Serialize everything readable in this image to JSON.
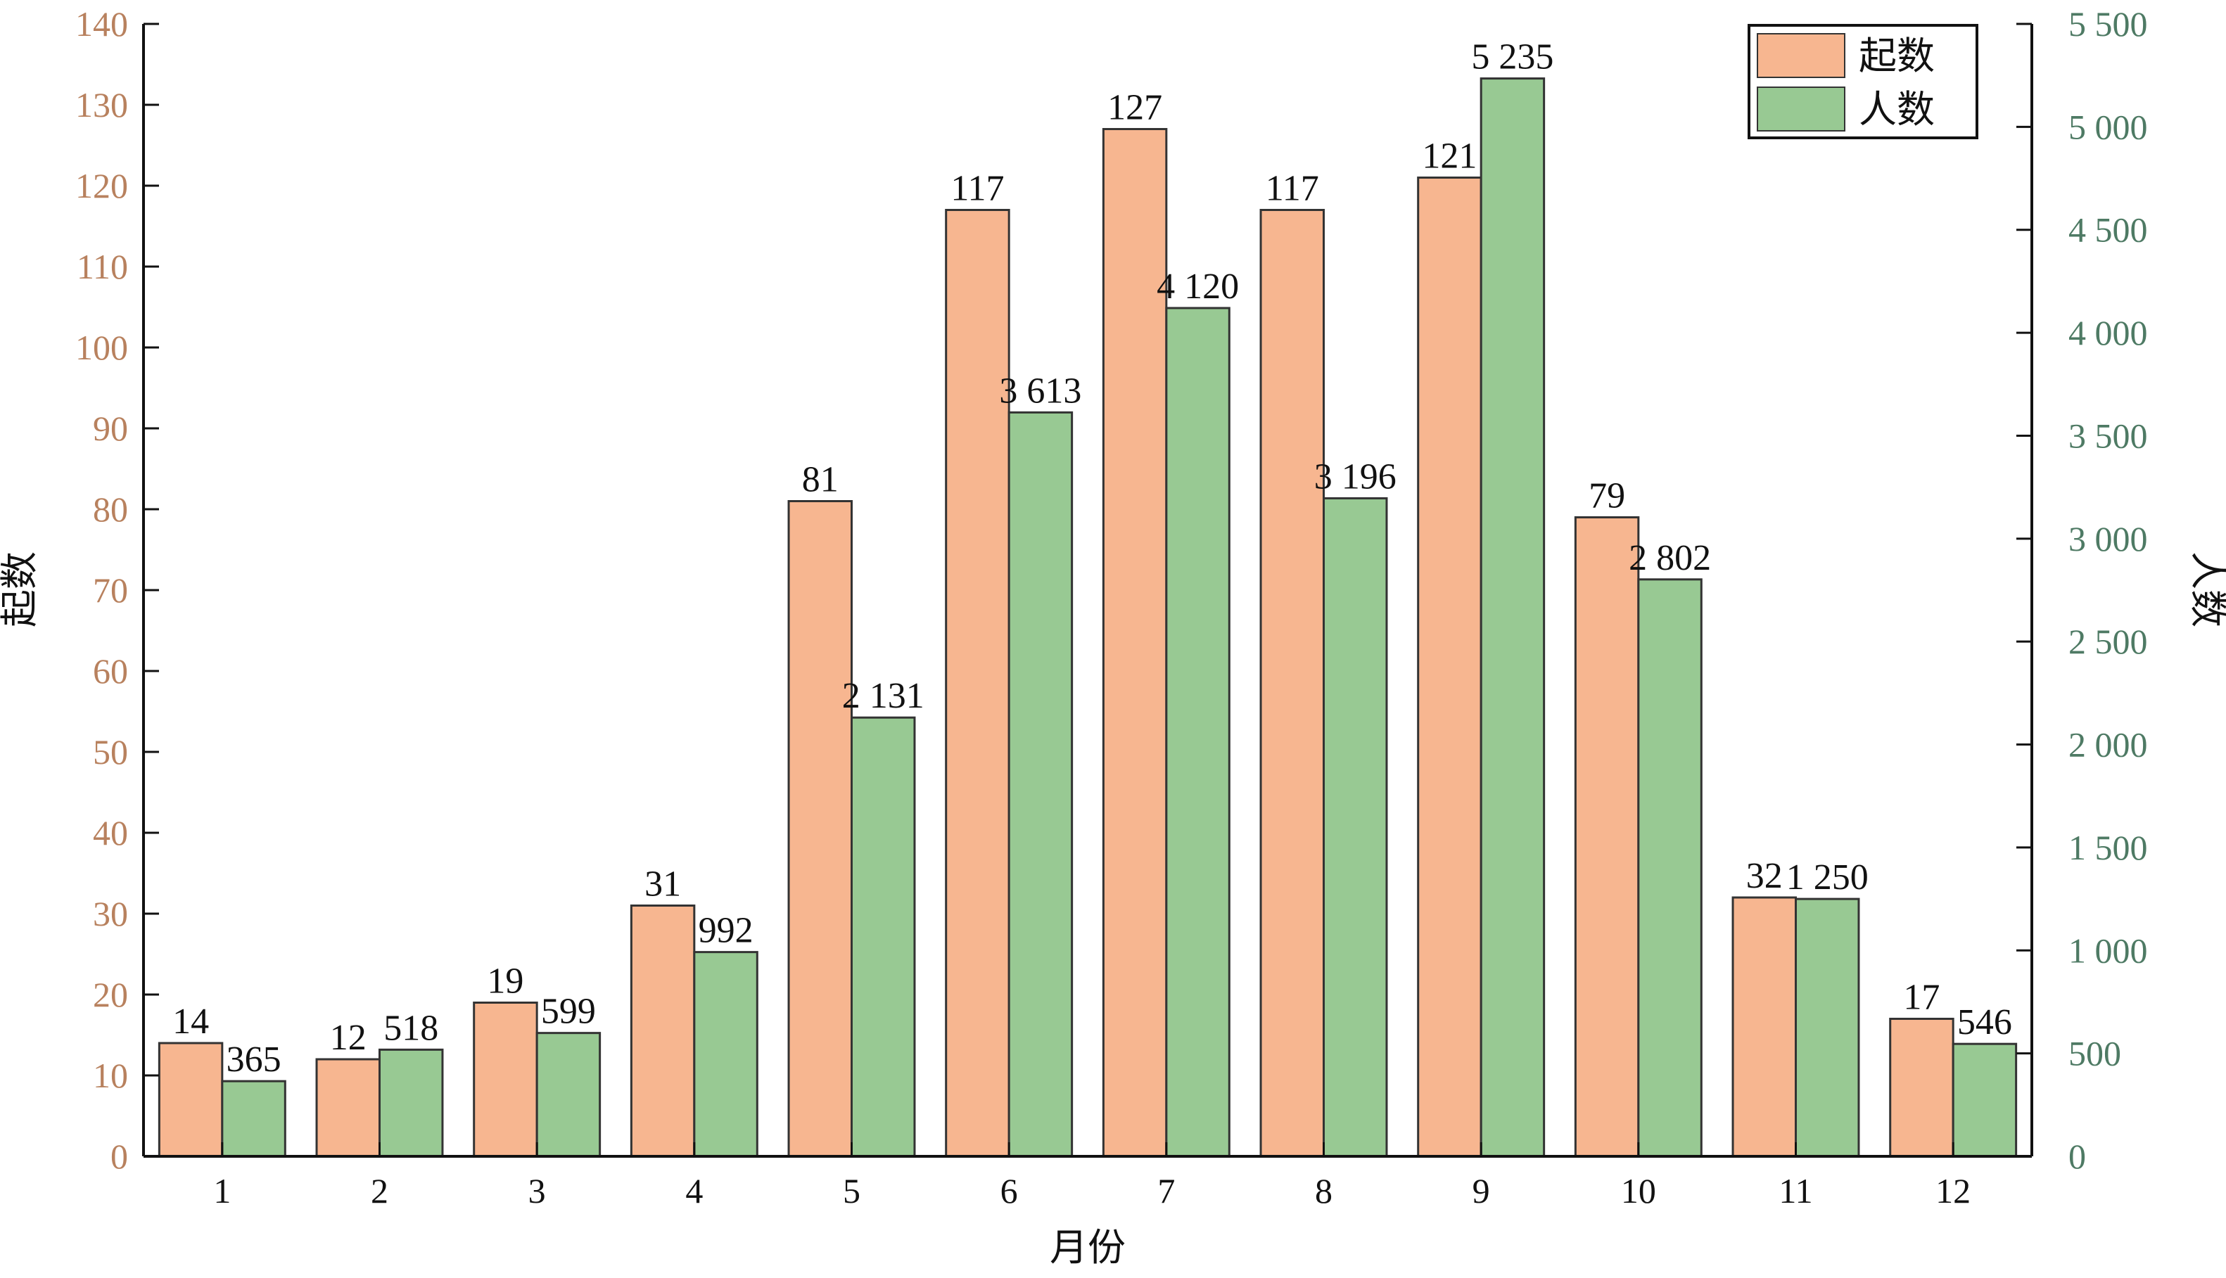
{
  "chart_data": {
    "type": "bar",
    "categories": [
      "1",
      "2",
      "3",
      "4",
      "5",
      "6",
      "7",
      "8",
      "9",
      "10",
      "11",
      "12"
    ],
    "xlabel": "月份",
    "series": [
      {
        "name": "起数",
        "axis": "left",
        "color": "#F7B690",
        "values": [
          14,
          12,
          19,
          31,
          81,
          117,
          127,
          117,
          121,
          79,
          32,
          17
        ],
        "labels": [
          "14",
          "12",
          "19",
          "31",
          "81",
          "117",
          "127",
          "117",
          "121",
          "79",
          "32",
          "17"
        ]
      },
      {
        "name": "人数",
        "axis": "right",
        "color": "#98C993",
        "values": [
          365,
          518,
          599,
          992,
          2131,
          3613,
          4120,
          3196,
          5235,
          2802,
          1250,
          546
        ],
        "labels": [
          "365",
          "518",
          "599",
          "992",
          "2 131",
          "3 613",
          "4 120",
          "3 196",
          "5 235",
          "2 802",
          "1 250",
          "546"
        ]
      }
    ],
    "y_left": {
      "label": "起数",
      "ylim": [
        0,
        140
      ],
      "ticks": [
        "0",
        "10",
        "20",
        "30",
        "40",
        "50",
        "60",
        "70",
        "80",
        "90",
        "100",
        "110",
        "120",
        "130",
        "140"
      ],
      "color": "#B8815E"
    },
    "y_right": {
      "label": "人数",
      "ylim": [
        0,
        5500
      ],
      "ticks": [
        "0",
        "500",
        "1 000",
        "1 500",
        "2 000",
        "2 500",
        "3 000",
        "3 500",
        "4 000",
        "4 500",
        "5 000",
        "5 500"
      ],
      "color": "#4E7A64"
    },
    "legend": {
      "placement": "top-right",
      "entries": [
        "起数",
        "人数"
      ]
    },
    "grid": false
  }
}
